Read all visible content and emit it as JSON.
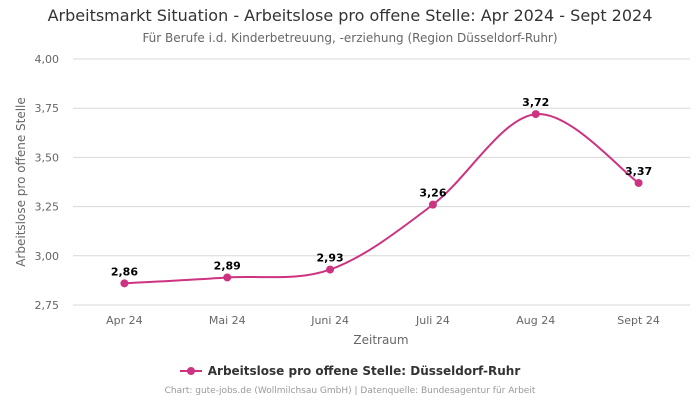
{
  "colors": {
    "series": "#cc3380",
    "grid": "#d8d8d8",
    "text": "#333333",
    "muted": "#666666"
  },
  "chart_data": {
    "type": "line",
    "title": "Arbeitsmarkt Situation - Arbeitslose pro offene Stelle: Apr 2024 - Sept 2024",
    "subtitle": "Für Berufe i.d. Kinderbetreuung, -erziehung (Region Düsseldorf-Ruhr)",
    "xlabel": "Zeitraum",
    "ylabel": "Arbeitslose pro offene Stelle",
    "categories": [
      "Apr 24",
      "Mai 24",
      "Juni 24",
      "Juli 24",
      "Aug 24",
      "Sept 24"
    ],
    "series": [
      {
        "name": "Arbeitslose pro offene Stelle: Düsseldorf-Ruhr",
        "values": [
          2.86,
          2.89,
          2.93,
          3.26,
          3.72,
          3.37
        ],
        "labels": [
          "2,86",
          "2,89",
          "2,93",
          "3,26",
          "3,72",
          "3,37"
        ]
      }
    ],
    "ylim": [
      2.75,
      4.0
    ],
    "yticks": [
      2.75,
      3.0,
      3.25,
      3.5,
      3.75,
      4.0
    ],
    "ytick_labels": [
      "2,75",
      "3,00",
      "3,25",
      "3,50",
      "3,75",
      "4,00"
    ],
    "grid": true,
    "legend_position": "bottom-center"
  },
  "credits": "Chart: gute-jobs.de (Wollmilchsau GmbH) | Datenquelle: Bundesagentur für Arbeit"
}
